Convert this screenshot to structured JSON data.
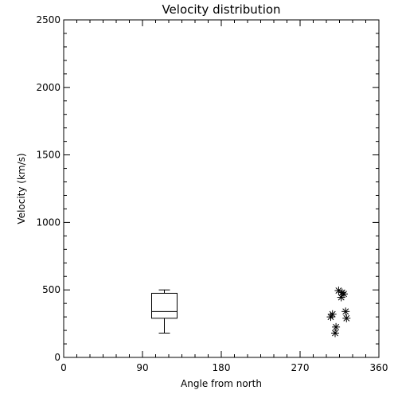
{
  "chart_data": {
    "type": "box-scatter",
    "title": "Velocity distribution",
    "xlabel": "Angle from north",
    "ylabel": "Velocity (km/s)",
    "xlim": [
      0,
      360
    ],
    "ylim": [
      0,
      2500
    ],
    "xticks": [
      0,
      90,
      180,
      270,
      360
    ],
    "yticks": [
      0,
      500,
      1000,
      1500,
      2000,
      2500
    ],
    "grid": false,
    "box": {
      "x": 115,
      "min": 180,
      "q1": 290,
      "median": 340,
      "q3": 475,
      "max": 500
    },
    "points": [
      {
        "x": 314,
        "y": 495
      },
      {
        "x": 318,
        "y": 480
      },
      {
        "x": 320,
        "y": 470
      },
      {
        "x": 317,
        "y": 445
      },
      {
        "x": 322,
        "y": 340
      },
      {
        "x": 307,
        "y": 320
      },
      {
        "x": 305,
        "y": 300
      },
      {
        "x": 323,
        "y": 290
      },
      {
        "x": 311,
        "y": 225
      },
      {
        "x": 310,
        "y": 180
      }
    ]
  }
}
